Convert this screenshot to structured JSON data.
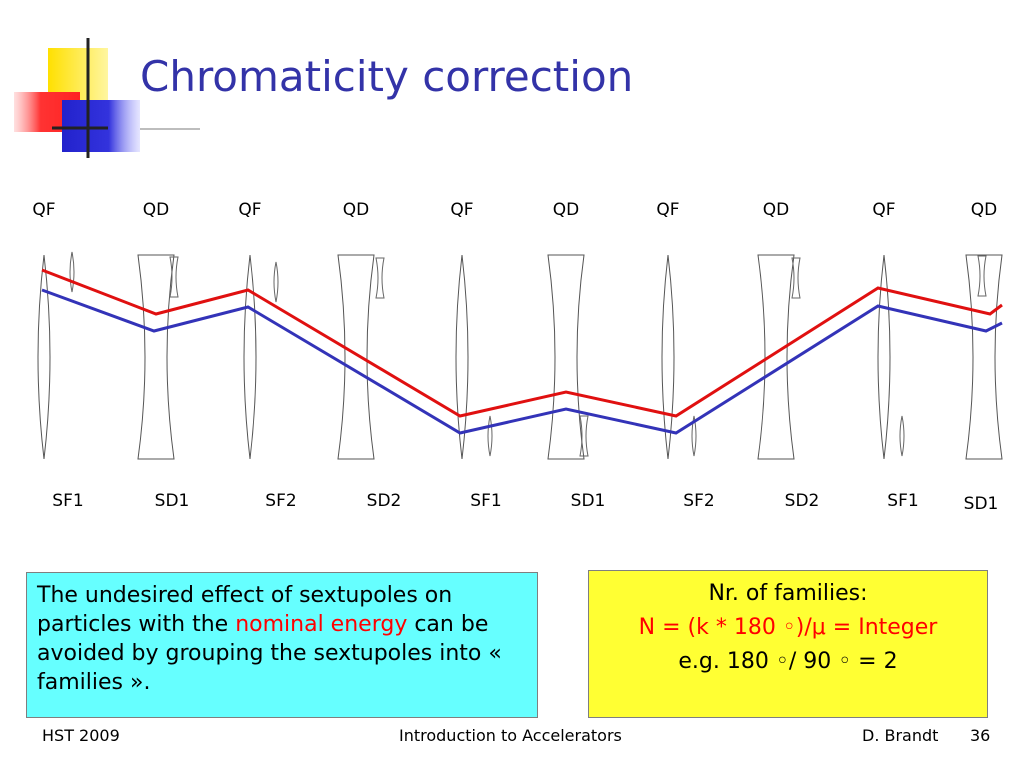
{
  "title": "Chromaticity correction",
  "colors": {
    "title": "#3333a8",
    "orbit_red": "#e01010",
    "orbit_blue": "#3333b8",
    "box_cyan": "#66ffff",
    "box_yellow": "#ffff33",
    "accent_red": "#ff0000"
  },
  "quad_labels": [
    "QF",
    "QD",
    "QF",
    "QD",
    "QF",
    "QD",
    "QF",
    "QD",
    "QF",
    "QD"
  ],
  "sextupole_labels": [
    "SF1",
    "SD1",
    "SF2",
    "SD2",
    "SF1",
    "SD1",
    "SF2",
    "SD2",
    "SF1",
    "SD1"
  ],
  "left_box": {
    "line1_pre": "The undesired effect of sextupoles on particles with the ",
    "highlight": "nominal energy",
    "line1_post": " can be avoided by grouping the sextupoles into « families »."
  },
  "right_box": {
    "heading": "Nr. of families:",
    "formula": "N = (k * 180 ◦)/μ = Integer",
    "example": "e.g. 180 ◦/ 90 ◦ = 2"
  },
  "footer": {
    "left": "HST 2009",
    "center": "Introduction to Accelerators",
    "author": "D. Brandt",
    "page": "36"
  }
}
